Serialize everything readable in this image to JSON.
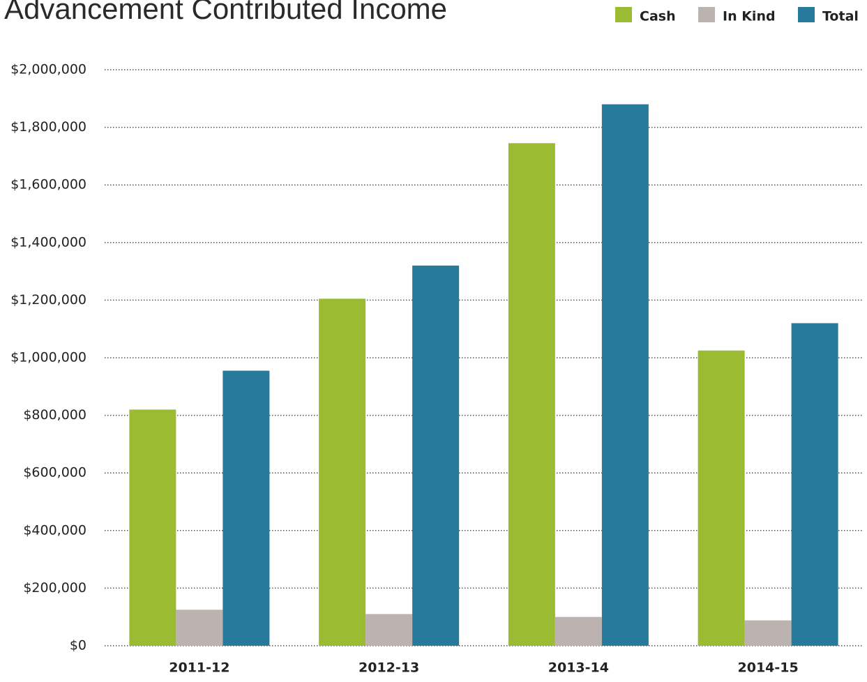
{
  "chart_data": {
    "type": "bar",
    "title": "Advancement Contributed Income",
    "categories": [
      "2011-12",
      "2012-13",
      "2013-14",
      "2014-15"
    ],
    "series": [
      {
        "name": "Cash",
        "color": "#9bbb33",
        "values": [
          820000,
          1205000,
          1745000,
          1025000
        ]
      },
      {
        "name": "In Kind",
        "color": "#bcb3b1",
        "values": [
          125000,
          110000,
          100000,
          88000
        ]
      },
      {
        "name": "Total",
        "color": "#287a9c",
        "values": [
          955000,
          1320000,
          1880000,
          1120000
        ]
      }
    ],
    "ylim": [
      0,
      2000000
    ],
    "yticks": [
      {
        "value": 0,
        "label": "$0"
      },
      {
        "value": 200000,
        "label": "$200,000"
      },
      {
        "value": 400000,
        "label": "$400,000"
      },
      {
        "value": 600000,
        "label": "$600,000"
      },
      {
        "value": 800000,
        "label": "$800,000"
      },
      {
        "value": 1000000,
        "label": "$1,000,000"
      },
      {
        "value": 1200000,
        "label": "$1,200,000"
      },
      {
        "value": 1400000,
        "label": "$1,400,000"
      },
      {
        "value": 1600000,
        "label": "$1,600,000"
      },
      {
        "value": 1800000,
        "label": "$1,800,000"
      },
      {
        "value": 2000000,
        "label": "$2,000,000"
      }
    ],
    "grid": true,
    "legend": "top-right"
  }
}
